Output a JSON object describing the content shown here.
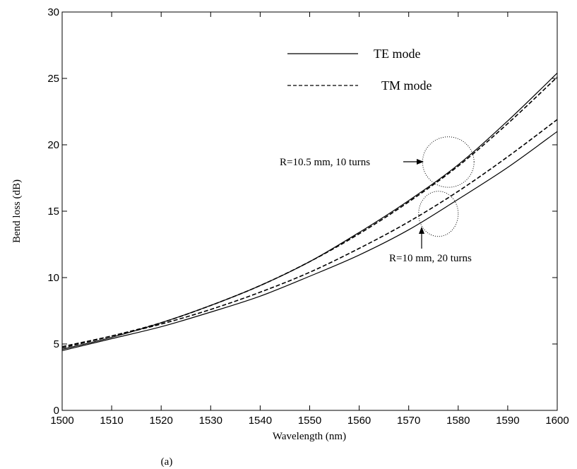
{
  "chart_data": {
    "type": "line",
    "title": "",
    "xlabel": "Wavelength (nm)",
    "ylabel": "Bend loss (dB)",
    "xlim": [
      1500,
      1600
    ],
    "ylim": [
      0,
      30
    ],
    "xticks": [
      1500,
      1510,
      1520,
      1530,
      1540,
      1550,
      1560,
      1570,
      1580,
      1590,
      1600
    ],
    "yticks": [
      0,
      5,
      10,
      15,
      20,
      25,
      30
    ],
    "grid": false,
    "legend_position": "top-center",
    "legend": [
      {
        "label": "TE mode",
        "style": "solid"
      },
      {
        "label": "TM mode",
        "style": "dashed"
      }
    ],
    "x": [
      1500,
      1510,
      1520,
      1530,
      1540,
      1550,
      1560,
      1570,
      1580,
      1590,
      1600
    ],
    "series": [
      {
        "mode": "TE",
        "group": "R=10.5 mm, 10 turns",
        "style": "solid",
        "values": [
          4.6,
          5.5,
          6.6,
          7.9,
          9.4,
          11.2,
          13.4,
          15.8,
          18.5,
          21.8,
          25.4
        ]
      },
      {
        "mode": "TM",
        "group": "R=10.5 mm, 10 turns",
        "style": "dashed",
        "values": [
          4.7,
          5.6,
          6.6,
          7.9,
          9.4,
          11.2,
          13.3,
          15.7,
          18.4,
          21.6,
          25.1
        ]
      },
      {
        "mode": "TE",
        "group": "R=10 mm, 20 turns",
        "style": "solid",
        "values": [
          4.5,
          5.4,
          6.3,
          7.4,
          8.6,
          10.1,
          11.7,
          13.6,
          15.9,
          18.3,
          21.0
        ]
      },
      {
        "mode": "TM",
        "group": "R=10 mm, 20 turns",
        "style": "dashed",
        "values": [
          4.8,
          5.6,
          6.5,
          7.6,
          8.9,
          10.4,
          12.2,
          14.2,
          16.5,
          19.1,
          21.9
        ]
      }
    ],
    "annotations": [
      {
        "text": "R=10.5 mm, 10 turns",
        "ellipse_center": [
          1578,
          18.7
        ],
        "ellipse_radii": [
          5.2,
          1.9
        ]
      },
      {
        "text": "R=10 mm, 20 turns",
        "ellipse_center": [
          1576,
          14.8
        ],
        "ellipse_radii": [
          4.0,
          1.7
        ]
      }
    ],
    "caption": "(a)"
  }
}
